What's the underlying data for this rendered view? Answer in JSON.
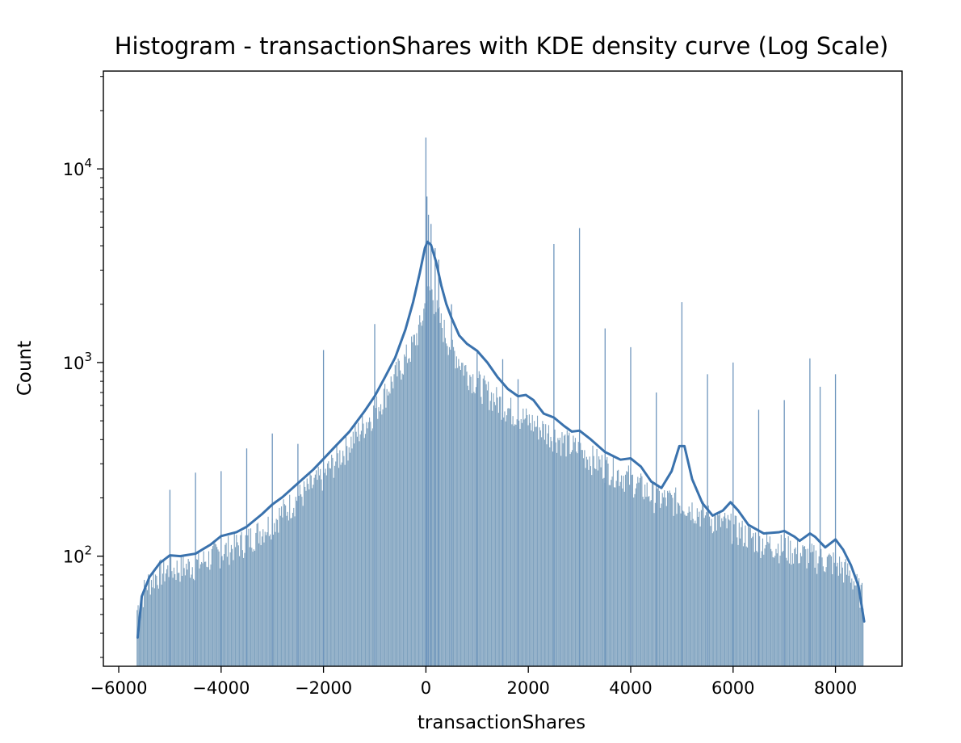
{
  "chart_data": {
    "type": "histogram",
    "title": "Histogram - transactionShares with KDE density curve (Log Scale)",
    "xlabel": "transactionShares",
    "ylabel": "Count",
    "xlim": [
      -6300,
      9300
    ],
    "ylim": [
      27,
      32000
    ],
    "yscale": "log",
    "grid": false,
    "legend": false,
    "x_ticks": [
      -6000,
      -4000,
      -2000,
      0,
      2000,
      4000,
      6000,
      8000
    ],
    "x_tick_labels": [
      "−6000",
      "−4000",
      "−2000",
      "0",
      "2000",
      "4000",
      "6000",
      "8000"
    ],
    "y_ticks": [
      {
        "value": 100,
        "base": "10",
        "exp": "2"
      },
      {
        "value": 1000,
        "base": "10",
        "exp": "3"
      },
      {
        "value": 10000,
        "base": "10",
        "exp": "4"
      }
    ],
    "colors": {
      "bars": "#7fa2bf",
      "kde": "#3a72ad",
      "spikes": "#6f96bd",
      "axis": "#000000"
    },
    "histogram": {
      "x_range": [
        -5650,
        8550
      ],
      "profile": [
        [
          -5650,
          52
        ],
        [
          -5450,
          72
        ],
        [
          -5200,
          82
        ],
        [
          -5000,
          85
        ],
        [
          -4500,
          90
        ],
        [
          -4000,
          105
        ],
        [
          -3500,
          120
        ],
        [
          -3000,
          150
        ],
        [
          -2500,
          200
        ],
        [
          -2000,
          260
        ],
        [
          -1500,
          380
        ],
        [
          -1000,
          560
        ],
        [
          -600,
          850
        ],
        [
          -300,
          1150
        ],
        [
          -100,
          1550
        ],
        [
          0,
          2100
        ],
        [
          100,
          2400
        ],
        [
          250,
          1700
        ],
        [
          500,
          1200
        ],
        [
          800,
          900
        ],
        [
          1200,
          700
        ],
        [
          1600,
          580
        ],
        [
          2000,
          500
        ],
        [
          2500,
          420
        ],
        [
          3000,
          350
        ],
        [
          3500,
          290
        ],
        [
          4000,
          250
        ],
        [
          4500,
          200
        ],
        [
          5000,
          190
        ],
        [
          5500,
          160
        ],
        [
          6000,
          140
        ],
        [
          6500,
          120
        ],
        [
          7000,
          110
        ],
        [
          7500,
          100
        ],
        [
          8000,
          92
        ],
        [
          8300,
          80
        ],
        [
          8550,
          60
        ]
      ],
      "spikes": [
        {
          "x": 0,
          "count": 14500
        },
        {
          "x": 20,
          "count": 7200
        },
        {
          "x": 50,
          "count": 5800
        },
        {
          "x": 100,
          "count": 5200
        },
        {
          "x": 180,
          "count": 3900
        },
        {
          "x": 250,
          "count": 3400
        },
        {
          "x": -1000,
          "count": 1580
        },
        {
          "x": 500,
          "count": 2000
        },
        {
          "x": 1000,
          "count": 1130
        },
        {
          "x": 1500,
          "count": 1040
        },
        {
          "x": 1800,
          "count": 820
        },
        {
          "x": 2500,
          "count": 4100
        },
        {
          "x": 3000,
          "count": 4950
        },
        {
          "x": 3500,
          "count": 1500
        },
        {
          "x": 4000,
          "count": 1200
        },
        {
          "x": 4500,
          "count": 700
        },
        {
          "x": 5000,
          "count": 2050
        },
        {
          "x": 5500,
          "count": 870
        },
        {
          "x": 6000,
          "count": 1000
        },
        {
          "x": 6500,
          "count": 570
        },
        {
          "x": 7000,
          "count": 640
        },
        {
          "x": 7500,
          "count": 1050
        },
        {
          "x": 7700,
          "count": 750
        },
        {
          "x": 8000,
          "count": 870
        },
        {
          "x": -2000,
          "count": 1160
        },
        {
          "x": -2500,
          "count": 380
        },
        {
          "x": -3000,
          "count": 430
        },
        {
          "x": -3500,
          "count": 360
        },
        {
          "x": -4000,
          "count": 275
        },
        {
          "x": -4500,
          "count": 270
        },
        {
          "x": -5000,
          "count": 220
        }
      ]
    },
    "kde": [
      [
        -5630,
        38
      ],
      [
        -5550,
        62
      ],
      [
        -5400,
        78
      ],
      [
        -5200,
        92
      ],
      [
        -5000,
        101
      ],
      [
        -4800,
        100
      ],
      [
        -4500,
        103
      ],
      [
        -4200,
        115
      ],
      [
        -4000,
        127
      ],
      [
        -3700,
        133
      ],
      [
        -3500,
        142
      ],
      [
        -3200,
        165
      ],
      [
        -3000,
        185
      ],
      [
        -2800,
        202
      ],
      [
        -2500,
        238
      ],
      [
        -2200,
        280
      ],
      [
        -2000,
        318
      ],
      [
        -1800,
        362
      ],
      [
        -1500,
        438
      ],
      [
        -1200,
        560
      ],
      [
        -1000,
        670
      ],
      [
        -800,
        840
      ],
      [
        -600,
        1060
      ],
      [
        -400,
        1480
      ],
      [
        -250,
        2050
      ],
      [
        -120,
        2900
      ],
      [
        -20,
        3900
      ],
      [
        30,
        4200
      ],
      [
        100,
        4050
      ],
      [
        200,
        3300
      ],
      [
        300,
        2500
      ],
      [
        400,
        2000
      ],
      [
        500,
        1700
      ],
      [
        650,
        1380
      ],
      [
        800,
        1250
      ],
      [
        1000,
        1150
      ],
      [
        1200,
        1000
      ],
      [
        1400,
        840
      ],
      [
        1600,
        730
      ],
      [
        1800,
        670
      ],
      [
        1950,
        680
      ],
      [
        2100,
        640
      ],
      [
        2300,
        545
      ],
      [
        2500,
        520
      ],
      [
        2700,
        470
      ],
      [
        2850,
        440
      ],
      [
        3000,
        445
      ],
      [
        3200,
        405
      ],
      [
        3500,
        345
      ],
      [
        3800,
        315
      ],
      [
        4000,
        320
      ],
      [
        4200,
        290
      ],
      [
        4400,
        243
      ],
      [
        4600,
        225
      ],
      [
        4800,
        275
      ],
      [
        4950,
        370
      ],
      [
        5050,
        370
      ],
      [
        5200,
        250
      ],
      [
        5400,
        188
      ],
      [
        5600,
        162
      ],
      [
        5800,
        172
      ],
      [
        5950,
        190
      ],
      [
        6100,
        172
      ],
      [
        6300,
        145
      ],
      [
        6600,
        131
      ],
      [
        6900,
        133
      ],
      [
        7000,
        135
      ],
      [
        7200,
        126
      ],
      [
        7300,
        120
      ],
      [
        7500,
        131
      ],
      [
        7600,
        126
      ],
      [
        7800,
        111
      ],
      [
        8000,
        122
      ],
      [
        8150,
        108
      ],
      [
        8300,
        90
      ],
      [
        8450,
        70
      ],
      [
        8560,
        46
      ]
    ]
  }
}
